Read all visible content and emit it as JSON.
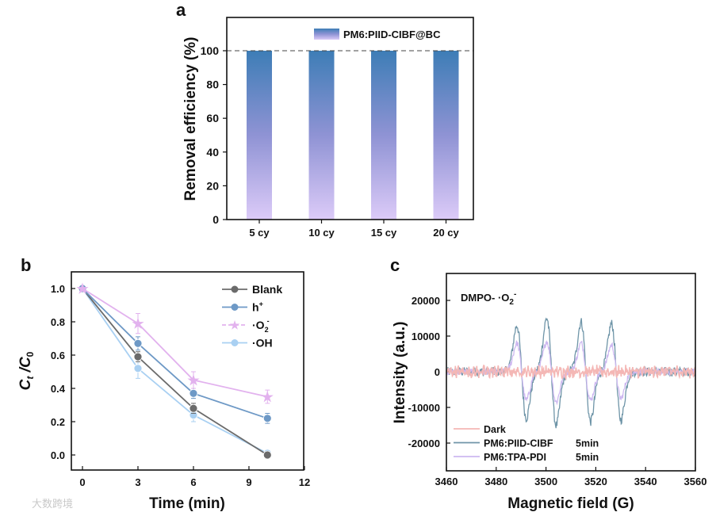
{
  "watermark": "大数跨境",
  "colors": {
    "bar_top": "#3d7db6",
    "bar_mid": "#8f93d4",
    "bar_bottom": "#dccbf8",
    "blank": "#6b6b6b",
    "h_plus": "#6e99c6",
    "o2": "#e2b2ee",
    "oh": "#a9d0f2",
    "dark": "#f4b7b5",
    "piid": "#6f95a8",
    "tpa": "#cdb8f0"
  },
  "chart_data": [
    {
      "panel": "a",
      "type": "bar",
      "ylabel": "Removal efficiency (%)",
      "xlabel": "",
      "ylim": [
        0,
        120
      ],
      "yticks": [
        "0",
        "20",
        "40",
        "60",
        "80",
        "100"
      ],
      "categories": [
        "5 cy",
        "10 cy",
        "15 cy",
        "20 cy"
      ],
      "series": [
        {
          "name": "PM6:PIID-CIBF@BC",
          "values": [
            100,
            100,
            100,
            100
          ]
        }
      ],
      "reference_line": 100
    },
    {
      "panel": "b",
      "type": "line",
      "xlabel": "Time (min)",
      "ylabel_main": "C",
      "ylabel_sub1": "t",
      "ylabel_mid": " /C",
      "ylabel_sub2": "0",
      "xlim": [
        -0.6,
        12
      ],
      "ylim": [
        -0.1,
        1.1
      ],
      "xticks": [
        "0",
        "3",
        "6",
        "9",
        "12"
      ],
      "yticks": [
        "0.0",
        "0.2",
        "0.4",
        "0.6",
        "0.8",
        "1.0"
      ],
      "x": [
        0,
        3,
        6,
        10
      ],
      "legend_position": "top-right",
      "series": [
        {
          "name": "Blank",
          "sup": "",
          "sub": "",
          "values": [
            1.0,
            0.59,
            0.28,
            0.0
          ],
          "err": [
            0,
            0.03,
            0.03,
            0.02
          ]
        },
        {
          "name": "h",
          "sup": "+",
          "sub": "",
          "values": [
            1.0,
            0.67,
            0.37,
            0.22
          ],
          "err": [
            0,
            0.04,
            0.03,
            0.03
          ]
        },
        {
          "name": "·O",
          "sup": "-",
          "sub": "2",
          "values": [
            1.0,
            0.79,
            0.45,
            0.35
          ],
          "err": [
            0,
            0.06,
            0.05,
            0.04
          ]
        },
        {
          "name": "·OH",
          "sup": "",
          "sub": "",
          "values": [
            1.0,
            0.52,
            0.24,
            0.01
          ],
          "err": [
            0,
            0.06,
            0.04,
            0.02
          ]
        }
      ]
    },
    {
      "panel": "c",
      "type": "line",
      "xlabel": "Magnetic field (G)",
      "ylabel": "Intensity (a.u.)",
      "annotation": {
        "main": "DMPO- ·O",
        "sub": "2",
        "sup": "-"
      },
      "xlim": [
        3460,
        3560
      ],
      "ylim": [
        -27700,
        27500
      ],
      "xticks": [
        "3460",
        "3480",
        "3500",
        "3520",
        "3540",
        "3560"
      ],
      "yticks": [
        "20000",
        "10000",
        "0",
        "-10000",
        "-20000"
      ],
      "legend_position": "bottom-left",
      "peak_centers": [
        3490.2,
        3502.2,
        3516.0,
        3528.2
      ],
      "series": [
        {
          "name": "Dark",
          "time": "",
          "amplitudes": [
            0,
            0,
            0,
            0
          ],
          "noise": 1300
        },
        {
          "name": "PM6:PIID-CIBF",
          "time": "5min",
          "amplitudes": [
            13000,
            15000,
            14000,
            13500
          ],
          "noise": 1300
        },
        {
          "name": "PM6:TPA-PDI",
          "time": "5min",
          "amplitudes": [
            8000,
            8500,
            8000,
            7500
          ],
          "noise": 900
        }
      ]
    }
  ]
}
